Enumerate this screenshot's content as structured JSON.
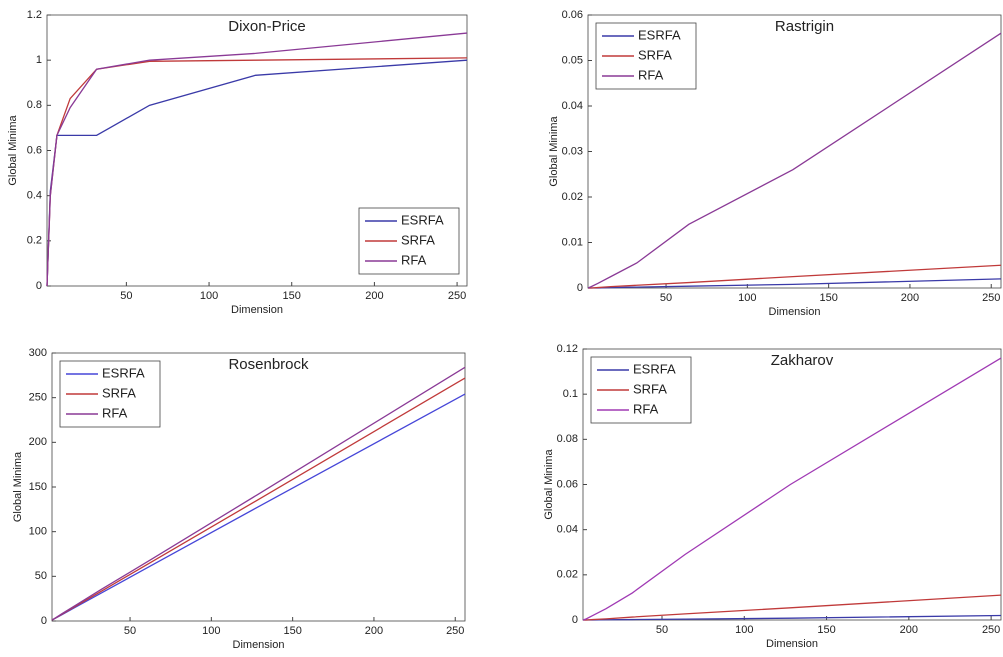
{
  "chart_data": [
    {
      "type": "line",
      "title": "Dixon-Price",
      "x_label": "Dimension",
      "y_label": "Global Minima",
      "x": [
        2,
        4,
        8,
        16,
        32,
        64,
        128,
        256
      ],
      "xlim": [
        2,
        256
      ],
      "xticks": [
        50,
        100,
        150,
        200,
        250
      ],
      "ylim": [
        0,
        1.2
      ],
      "yticks": [
        0,
        0.2,
        0.4,
        0.6,
        0.8,
        1,
        1.2
      ],
      "legend": "lower-right",
      "series": [
        {
          "name": "ESRFA",
          "color": "#3a3aa8",
          "values": [
            0,
            0.42,
            0.667,
            0.667,
            0.667,
            0.8,
            0.933,
            1.0
          ]
        },
        {
          "name": "SRFA",
          "color": "#c03a3a",
          "values": [
            0,
            0.4,
            0.667,
            0.83,
            0.96,
            0.995,
            1.0,
            1.01
          ]
        },
        {
          "name": "RFA",
          "color": "#8a3a96",
          "values": [
            0,
            0.4,
            0.667,
            0.79,
            0.96,
            1.0,
            1.03,
            1.12
          ]
        }
      ]
    },
    {
      "type": "line",
      "title": "Rastrigin",
      "x_label": "Dimension",
      "y_label": "Global Minima",
      "x": [
        2,
        4,
        8,
        16,
        32,
        64,
        128,
        256
      ],
      "xlim": [
        2,
        256
      ],
      "xticks": [
        50,
        100,
        150,
        200,
        250
      ],
      "ylim": [
        0,
        0.06
      ],
      "yticks": [
        0,
        0.01,
        0.02,
        0.03,
        0.04,
        0.05,
        0.06
      ],
      "legend": "upper-left",
      "series": [
        {
          "name": "ESRFA",
          "color": "#3a3aa8",
          "values": [
            0,
            0,
            0,
            0.0001,
            0.0002,
            0.0004,
            0.0008,
            0.002
          ]
        },
        {
          "name": "SRFA",
          "color": "#c03a3a",
          "values": [
            0,
            0,
            0.0001,
            0.0003,
            0.0006,
            0.0012,
            0.0025,
            0.005
          ]
        },
        {
          "name": "RFA",
          "color": "#8a3a96",
          "values": [
            0,
            0.0003,
            0.001,
            0.0025,
            0.0055,
            0.014,
            0.026,
            0.056
          ]
        }
      ]
    },
    {
      "type": "line",
      "title": "Rosenbrock",
      "x_label": "Dimension",
      "y_label": "Global Minima",
      "x": [
        2,
        4,
        8,
        16,
        32,
        64,
        128,
        256
      ],
      "xlim": [
        2,
        256
      ],
      "xticks": [
        50,
        100,
        150,
        200,
        250
      ],
      "ylim": [
        0,
        300
      ],
      "yticks": [
        0,
        50,
        100,
        150,
        200,
        250,
        300
      ],
      "legend": "upper-left",
      "series": [
        {
          "name": "ESRFA",
          "color": "#4646d8",
          "values": [
            1,
            3,
            7,
            15,
            31,
            63,
            127,
            254
          ]
        },
        {
          "name": "SRFA",
          "color": "#c03a3a",
          "values": [
            1,
            3.2,
            7.5,
            16,
            33,
            67,
            135,
            272
          ]
        },
        {
          "name": "RFA",
          "color": "#8a3a96",
          "values": [
            1,
            3.3,
            8,
            17,
            35,
            70,
            141,
            284
          ]
        }
      ]
    },
    {
      "type": "line",
      "title": "Zakharov",
      "x_label": "Dimension",
      "y_label": "Global Minima",
      "x": [
        2,
        4,
        8,
        16,
        32,
        64,
        128,
        256
      ],
      "xlim": [
        2,
        256
      ],
      "xticks": [
        50,
        100,
        150,
        200,
        250
      ],
      "ylim": [
        0,
        0.12
      ],
      "yticks": [
        0,
        0.02,
        0.04,
        0.06,
        0.08,
        0.1,
        0.12
      ],
      "legend": "upper-left",
      "series": [
        {
          "name": "ESRFA",
          "color": "#3a3aa8",
          "values": [
            0,
            0,
            0,
            0.0001,
            0.0002,
            0.0004,
            0.0008,
            0.002
          ]
        },
        {
          "name": "SRFA",
          "color": "#c03a3a",
          "values": [
            0,
            0,
            0.0002,
            0.0005,
            0.0013,
            0.0027,
            0.0054,
            0.011
          ]
        },
        {
          "name": "RFA",
          "color": "#a03ab4",
          "values": [
            0,
            0.0005,
            0.002,
            0.005,
            0.012,
            0.029,
            0.06,
            0.116
          ]
        }
      ]
    }
  ]
}
